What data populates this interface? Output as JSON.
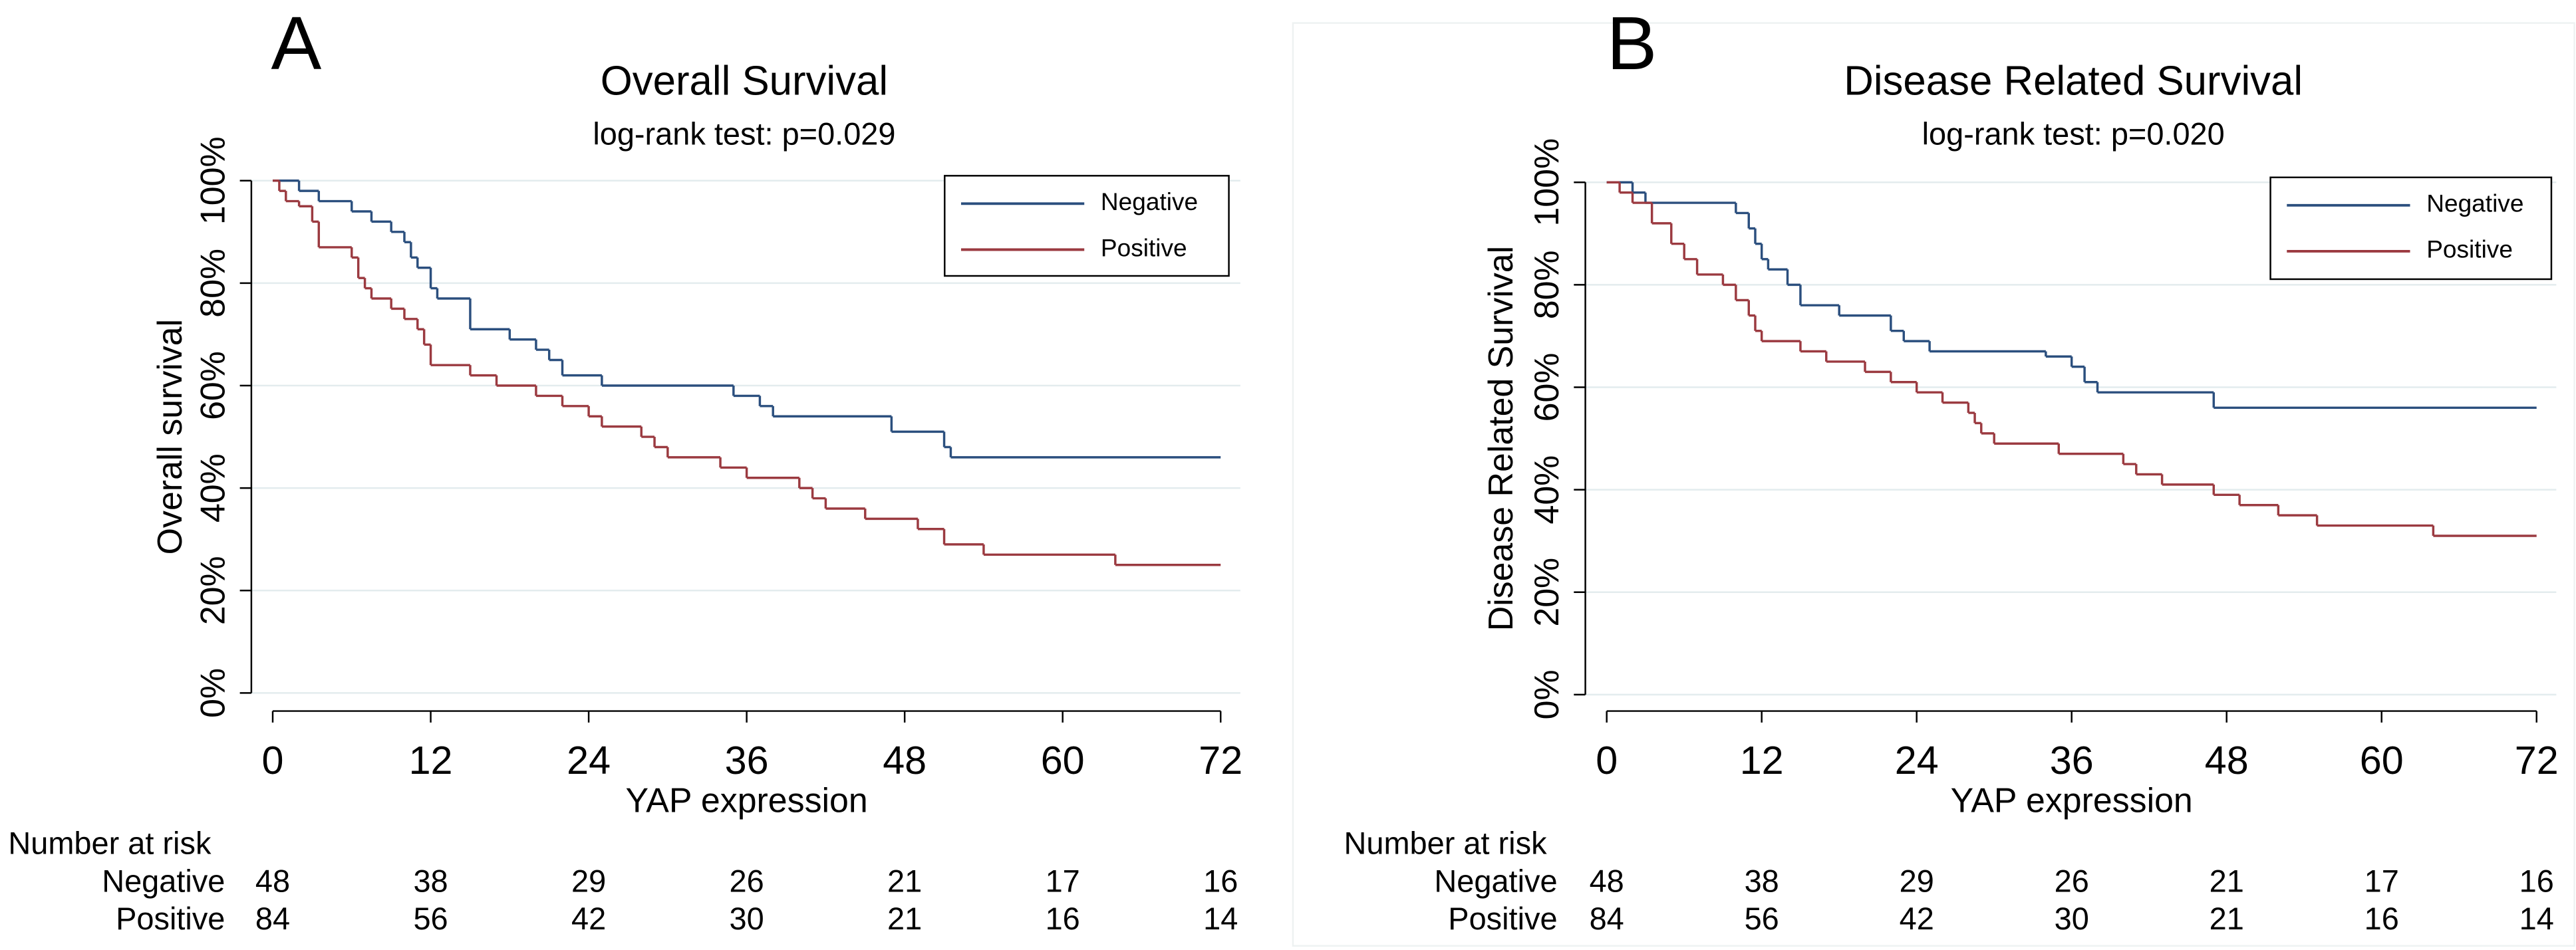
{
  "chart_data": [
    {
      "type": "step",
      "panel": "A",
      "title": "Overall Survival",
      "subtitle": "log-rank test: p=0.029",
      "y_label": "Overall survival",
      "x_label": "YAP expression",
      "xlim": [
        0,
        72
      ],
      "xticks": [
        0,
        12,
        24,
        36,
        48,
        60,
        72
      ],
      "ylim": [
        0,
        100
      ],
      "yticks": [
        {
          "value": 0,
          "label": "0%"
        },
        {
          "value": 20,
          "label": "20%"
        },
        {
          "value": 40,
          "label": "40%"
        },
        {
          "value": 60,
          "label": "60%"
        },
        {
          "value": 80,
          "label": "80%"
        },
        {
          "value": 100,
          "label": "100%"
        }
      ],
      "grid": true,
      "legend": "upper right",
      "series": [
        {
          "name": "Negative",
          "color": "#2b4f7e",
          "x": [
            0,
            2,
            3.5,
            6,
            7.5,
            9,
            10,
            10.5,
            11,
            12,
            12.5,
            15,
            18,
            20,
            21,
            22,
            25,
            35,
            37,
            38,
            47,
            51,
            51.5,
            72
          ],
          "values": [
            100,
            98,
            96,
            94,
            92,
            90,
            88,
            85,
            83,
            79,
            77,
            71,
            69,
            67,
            65,
            62,
            60,
            58,
            56,
            54,
            51,
            48,
            46,
            46
          ]
        },
        {
          "name": "Positive",
          "color": "#9b3a40",
          "x": [
            0,
            0.5,
            1,
            2,
            3,
            3.5,
            6,
            6.5,
            7,
            7.5,
            9,
            10,
            11,
            11.5,
            12,
            15,
            17,
            20,
            22,
            24,
            25,
            28,
            29,
            30,
            34,
            36,
            40,
            41,
            42,
            45,
            49,
            51,
            54,
            64,
            72
          ],
          "values": [
            100,
            98,
            96,
            95,
            92,
            87,
            85,
            81,
            79,
            77,
            75,
            73,
            71,
            68,
            64,
            62,
            60,
            58,
            56,
            54,
            52,
            50,
            48,
            46,
            44,
            42,
            40,
            38,
            36,
            34,
            32,
            29,
            27,
            25,
            25
          ]
        }
      ],
      "risk_table": {
        "title": "Number at risk",
        "rows": [
          {
            "name": "Negative",
            "values": [
              48,
              38,
              29,
              26,
              21,
              17,
              16
            ]
          },
          {
            "name": "Positive",
            "values": [
              84,
              56,
              42,
              30,
              21,
              16,
              14
            ]
          }
        ]
      }
    },
    {
      "type": "step",
      "panel": "B",
      "title": "Disease Related Survival",
      "subtitle": "log-rank test: p=0.020",
      "y_label": "Disease Related Survival",
      "x_label": "YAP expression",
      "xlim": [
        0,
        72
      ],
      "xticks": [
        0,
        12,
        24,
        36,
        48,
        60,
        72
      ],
      "ylim": [
        0,
        100
      ],
      "yticks": [
        {
          "value": 0,
          "label": "0%"
        },
        {
          "value": 20,
          "label": "20%"
        },
        {
          "value": 40,
          "label": "40%"
        },
        {
          "value": 60,
          "label": "60%"
        },
        {
          "value": 80,
          "label": "80%"
        },
        {
          "value": 100,
          "label": "100%"
        }
      ],
      "grid": true,
      "legend": "upper right",
      "series": [
        {
          "name": "Negative",
          "color": "#2b4f7e",
          "x": [
            0,
            2,
            3,
            10,
            11,
            11.5,
            12,
            12.5,
            14,
            15,
            18,
            22,
            23,
            25,
            34,
            36,
            37,
            38,
            47,
            72
          ],
          "values": [
            100,
            98,
            96,
            94,
            91,
            88,
            85,
            83,
            80,
            76,
            74,
            71,
            69,
            67,
            66,
            64,
            61,
            59,
            56,
            56
          ]
        },
        {
          "name": "Positive",
          "color": "#9b3a40",
          "x": [
            0,
            1,
            2,
            3.5,
            5,
            6,
            7,
            9,
            10,
            11,
            11.5,
            12,
            15,
            17,
            20,
            22,
            24,
            26,
            28,
            28.5,
            29,
            30,
            35,
            40,
            41,
            43,
            47,
            49,
            52,
            55,
            64,
            72
          ],
          "values": [
            100,
            98,
            96,
            92,
            88,
            85,
            82,
            80,
            77,
            74,
            71,
            69,
            67,
            65,
            63,
            61,
            59,
            57,
            55,
            53,
            51,
            49,
            47,
            45,
            43,
            41,
            39,
            37,
            35,
            33,
            31,
            31
          ]
        }
      ],
      "risk_table": {
        "title": "Number at risk",
        "rows": [
          {
            "name": "Negative",
            "values": [
              48,
              38,
              29,
              26,
              21,
              17,
              16
            ]
          },
          {
            "name": "Positive",
            "values": [
              84,
              56,
              42,
              30,
              21,
              16,
              14
            ]
          }
        ]
      }
    }
  ]
}
